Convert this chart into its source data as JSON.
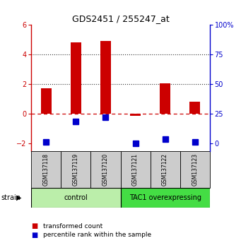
{
  "title": "GDS2451 / 255247_at",
  "samples": [
    "GSM137118",
    "GSM137119",
    "GSM137120",
    "GSM137121",
    "GSM137122",
    "GSM137123"
  ],
  "red_values": [
    1.75,
    4.85,
    4.9,
    -0.12,
    2.05,
    0.85
  ],
  "blue_y_on_red_scale": [
    -1.9,
    -0.5,
    -0.22,
    -2.0,
    -1.7,
    -1.9
  ],
  "ylim": [
    -2.5,
    6.0
  ],
  "yticks_red": [
    -2,
    0,
    2,
    4,
    6
  ],
  "yticks_blue": [
    0,
    25,
    50,
    75,
    100
  ],
  "red_color": "#cc0000",
  "blue_color": "#0000cc",
  "control_bg": "#cceecc",
  "overexpressing_bg": "#44cc44",
  "label_bg": "#cccccc",
  "hline_dashed_color": "#cc0000",
  "dotted_line_color": "#333333",
  "red_bar_width": 0.35,
  "blue_marker_size": 6,
  "legend1": "transformed count",
  "legend2": "percentile rank within the sample",
  "group_info": [
    {
      "label": "control",
      "start": 0,
      "end": 3,
      "color": "#bbeeaa"
    },
    {
      "label": "TAC1 overexpressing",
      "start": 3,
      "end": 6,
      "color": "#44dd44"
    }
  ]
}
